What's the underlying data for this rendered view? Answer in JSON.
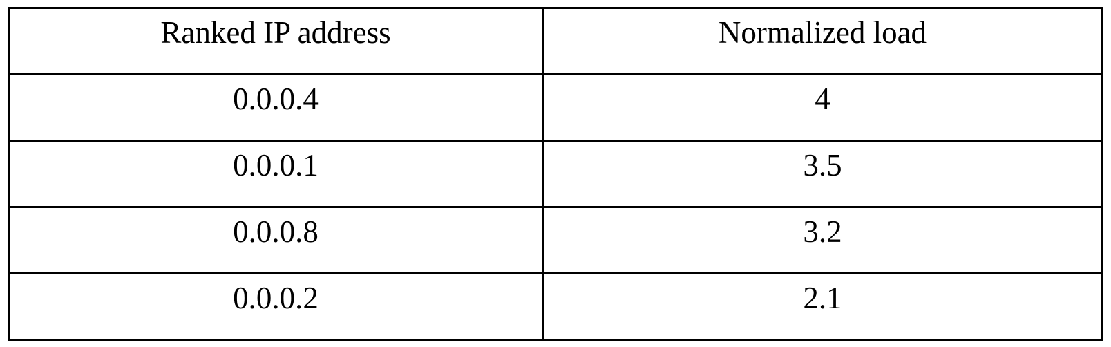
{
  "table": {
    "headers": [
      "Ranked IP address",
      "Normalized load"
    ],
    "rows": [
      [
        "0.0.0.4",
        "4"
      ],
      [
        "0.0.0.1",
        "3.5"
      ],
      [
        "0.0.0.8",
        "3.2"
      ],
      [
        "0.0.0.2",
        "2.1"
      ]
    ]
  }
}
